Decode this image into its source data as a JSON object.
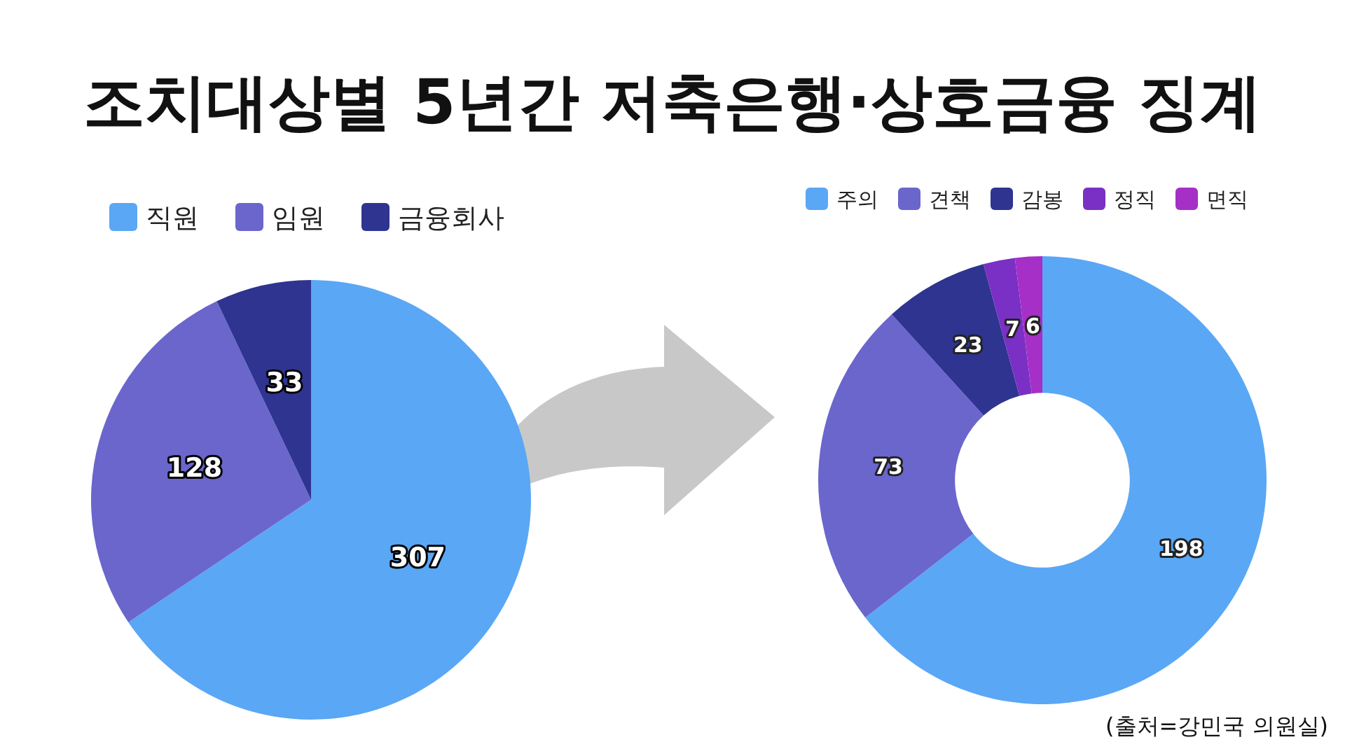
{
  "chart_data": [
    {
      "type": "pie",
      "title": "조치대상별 5년간 저축은행·상호금융 징계",
      "categories": [
        "직원",
        "임원",
        "금융회사"
      ],
      "values": [
        307,
        128,
        33
      ],
      "colors": [
        "#5aa7f5",
        "#6a66cc",
        "#2e3490"
      ],
      "data_labels": true,
      "legend": "top"
    },
    {
      "type": "donut",
      "categories": [
        "주의",
        "견책",
        "감봉",
        "정직",
        "면직"
      ],
      "values": [
        198,
        73,
        23,
        7,
        6
      ],
      "colors": [
        "#5aa7f5",
        "#6a66cc",
        "#2e3490",
        "#7a30c4",
        "#a62fc8"
      ],
      "data_labels": true,
      "legend": "top",
      "annotations": [
        "(출처=강민국 의원실)"
      ]
    }
  ]
}
